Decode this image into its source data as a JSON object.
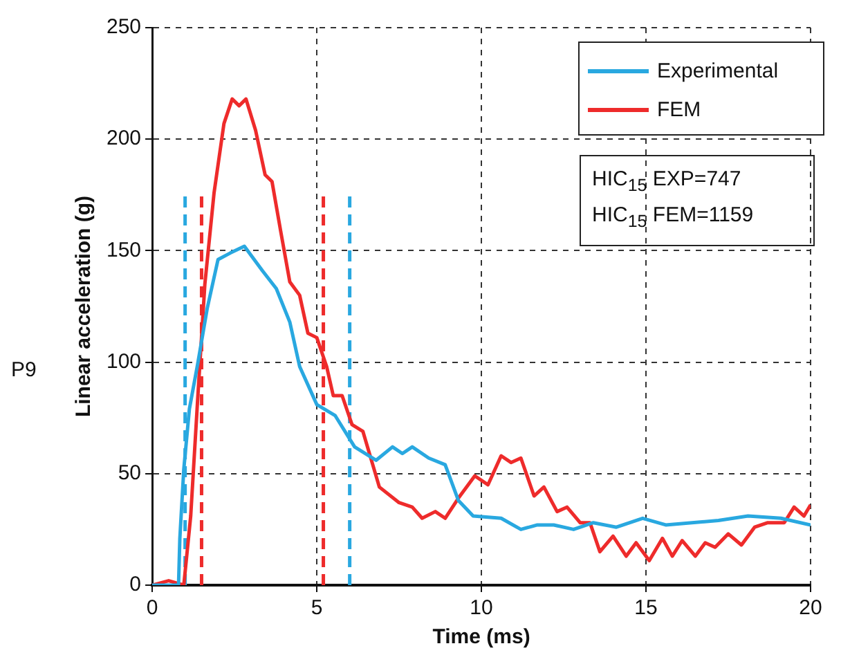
{
  "chart_data": {
    "type": "line",
    "xlabel": "Time (ms)",
    "ylabel": "Linear acceleration (g)",
    "xlim": [
      0,
      20
    ],
    "xticks": [
      0,
      5,
      10,
      15,
      20
    ],
    "ylim": [
      0,
      250
    ],
    "yticks": [
      0,
      50,
      100,
      150,
      200,
      250
    ],
    "grid": true,
    "legend": "top right",
    "marker": "none",
    "line_style": "solid",
    "annotations": [
      "P9",
      "HIC$_{15}$ EXP=747",
      "HIC$_{15}$ FEM=1159"
    ],
    "series": [
      {
        "name": "Experimental",
        "color": "#29a8e0",
        "x": [
          0,
          0.8,
          0.84,
          0.96,
          1.13,
          1.38,
          1.67,
          2.0,
          2.38,
          2.8,
          3.35,
          3.77,
          4.18,
          4.48,
          5.0,
          5.56,
          6.15,
          6.8,
          7.3,
          7.6,
          7.9,
          8.4,
          8.9,
          9.3,
          9.75,
          10.6,
          11.2,
          11.7,
          12.2,
          12.8,
          13.4,
          14.1,
          14.9,
          15.6,
          17.2,
          18.1,
          19.1,
          20
        ],
        "values": [
          0,
          0,
          21,
          52,
          79,
          99,
          124,
          146,
          149,
          152,
          141,
          133,
          118,
          98,
          81,
          76,
          62,
          56,
          62,
          59,
          62,
          57,
          54,
          38,
          31,
          30,
          25,
          27,
          27,
          25,
          28,
          26,
          30,
          27,
          29,
          31,
          30,
          27
        ]
      },
      {
        "name": "FEM",
        "color": "#ee2b2b",
        "x": [
          0,
          0.5,
          0.96,
          1.17,
          1.38,
          1.6,
          1.88,
          2.18,
          2.43,
          2.64,
          2.85,
          3.14,
          3.43,
          3.64,
          3.9,
          4.18,
          4.48,
          4.73,
          5.0,
          5.3,
          5.5,
          5.77,
          6.07,
          6.4,
          6.9,
          7.5,
          7.9,
          8.2,
          8.6,
          8.9,
          9.3,
          9.8,
          10.2,
          10.6,
          10.9,
          11.2,
          11.6,
          11.9,
          12.3,
          12.6,
          13.0,
          13.3,
          13.6,
          14.0,
          14.4,
          14.7,
          15.1,
          15.5,
          15.8,
          16.1,
          16.5,
          16.8,
          17.1,
          17.5,
          17.9,
          18.3,
          18.7,
          19.2,
          19.5,
          19.8,
          20
        ],
        "values": [
          0,
          2,
          0,
          31,
          83,
          135,
          176,
          207,
          218,
          215,
          218,
          204,
          184,
          181,
          159,
          136,
          130,
          113,
          111,
          98,
          85,
          85,
          72,
          69,
          44,
          37,
          35,
          30,
          33,
          30,
          39,
          49,
          45,
          58,
          55,
          57,
          40,
          44,
          33,
          35,
          28,
          28,
          15,
          22,
          13,
          19,
          11,
          21,
          13,
          20,
          13,
          19,
          17,
          23,
          18,
          26,
          28,
          28,
          35,
          31,
          36
        ]
      },
      {
        "color": "#29a8e0",
        "line_style": "dashed",
        "x": [
          1.0,
          1.0
        ],
        "values": [
          0,
          175
        ]
      },
      {
        "color": "#29a8e0",
        "line_style": "dashed",
        "x": [
          6.0,
          6.0
        ],
        "values": [
          0,
          175
        ]
      },
      {
        "color": "#ee2b2b",
        "line_style": "dashed",
        "x": [
          1.5,
          1.5
        ],
        "values": [
          0,
          175
        ]
      },
      {
        "color": "#ee2b2b",
        "line_style": "dashed",
        "x": [
          5.2,
          5.2
        ],
        "values": [
          0,
          175
        ]
      }
    ]
  }
}
